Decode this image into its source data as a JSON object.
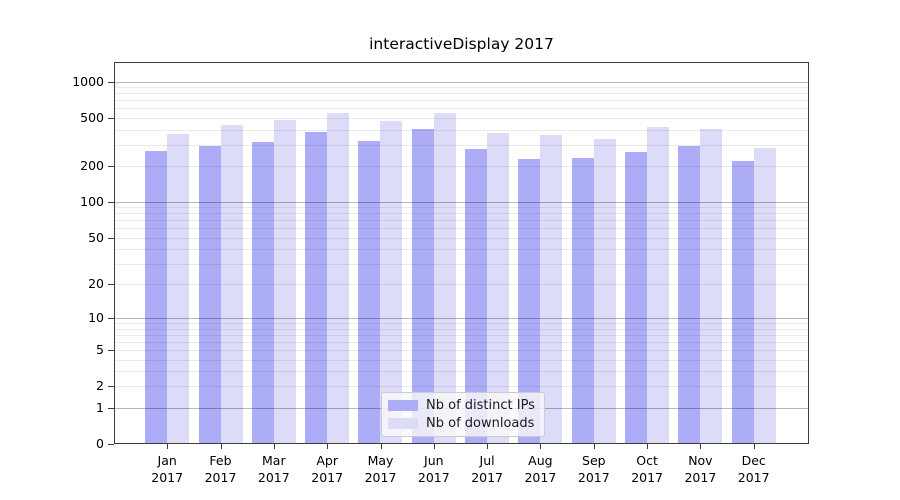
{
  "title": "interactiveDisplay 2017",
  "chart_data": {
    "type": "bar",
    "title": "interactiveDisplay 2017",
    "categories": [
      "Jan 2017",
      "Feb 2017",
      "Mar 2017",
      "Apr 2017",
      "May 2017",
      "Jun 2017",
      "Jul 2017",
      "Aug 2017",
      "Sep 2017",
      "Oct 2017",
      "Nov 2017",
      "Dec 2017"
    ],
    "x_tick_months": [
      "Jan",
      "Feb",
      "Mar",
      "Apr",
      "May",
      "Jun",
      "Jul",
      "Aug",
      "Sep",
      "Oct",
      "Nov",
      "Dec"
    ],
    "x_tick_year": "2017",
    "series": [
      {
        "name": "Nb of distinct IPs",
        "color": "#acacf7",
        "values": [
          259,
          285,
          308,
          372,
          314,
          394,
          269,
          222,
          226,
          254,
          285,
          214
        ]
      },
      {
        "name": "Nb of downloads",
        "color": "#dcdcf8",
        "values": [
          359,
          427,
          469,
          536,
          460,
          536,
          366,
          352,
          326,
          410,
          394,
          274
        ]
      }
    ],
    "yscale": "log1p",
    "ylim": [
      0,
      1450
    ],
    "ytick_values": [
      0,
      1,
      2,
      5,
      10,
      20,
      50,
      100,
      200,
      500,
      1000
    ],
    "ytick_labels": [
      "0",
      "1",
      "2",
      "5",
      "10",
      "20",
      "50",
      "100",
      "200",
      "500",
      "1000"
    ],
    "major_grid_values": [
      1,
      10,
      100,
      1000
    ],
    "minor_grid_values": [
      2,
      3,
      4,
      5,
      6,
      7,
      8,
      9,
      20,
      30,
      40,
      50,
      60,
      70,
      80,
      90,
      200,
      300,
      400,
      500,
      600,
      700,
      800,
      900
    ],
    "grid": "on",
    "legend_position": "lower-center",
    "legend_entries": [
      "Nb of distinct IPs",
      "Nb of downloads"
    ]
  },
  "colors": {
    "bar_distinct_ips": "#acacf7",
    "bar_downloads": "#dcdcf8",
    "major_grid": "rgba(0,0,0,0.28)",
    "minor_grid": "rgba(0,0,0,0.08)",
    "spine": "#3c3c3c",
    "text": "#000000",
    "legend_bg": "rgba(249,249,249,0.8)",
    "legend_border": "#cccccc"
  }
}
